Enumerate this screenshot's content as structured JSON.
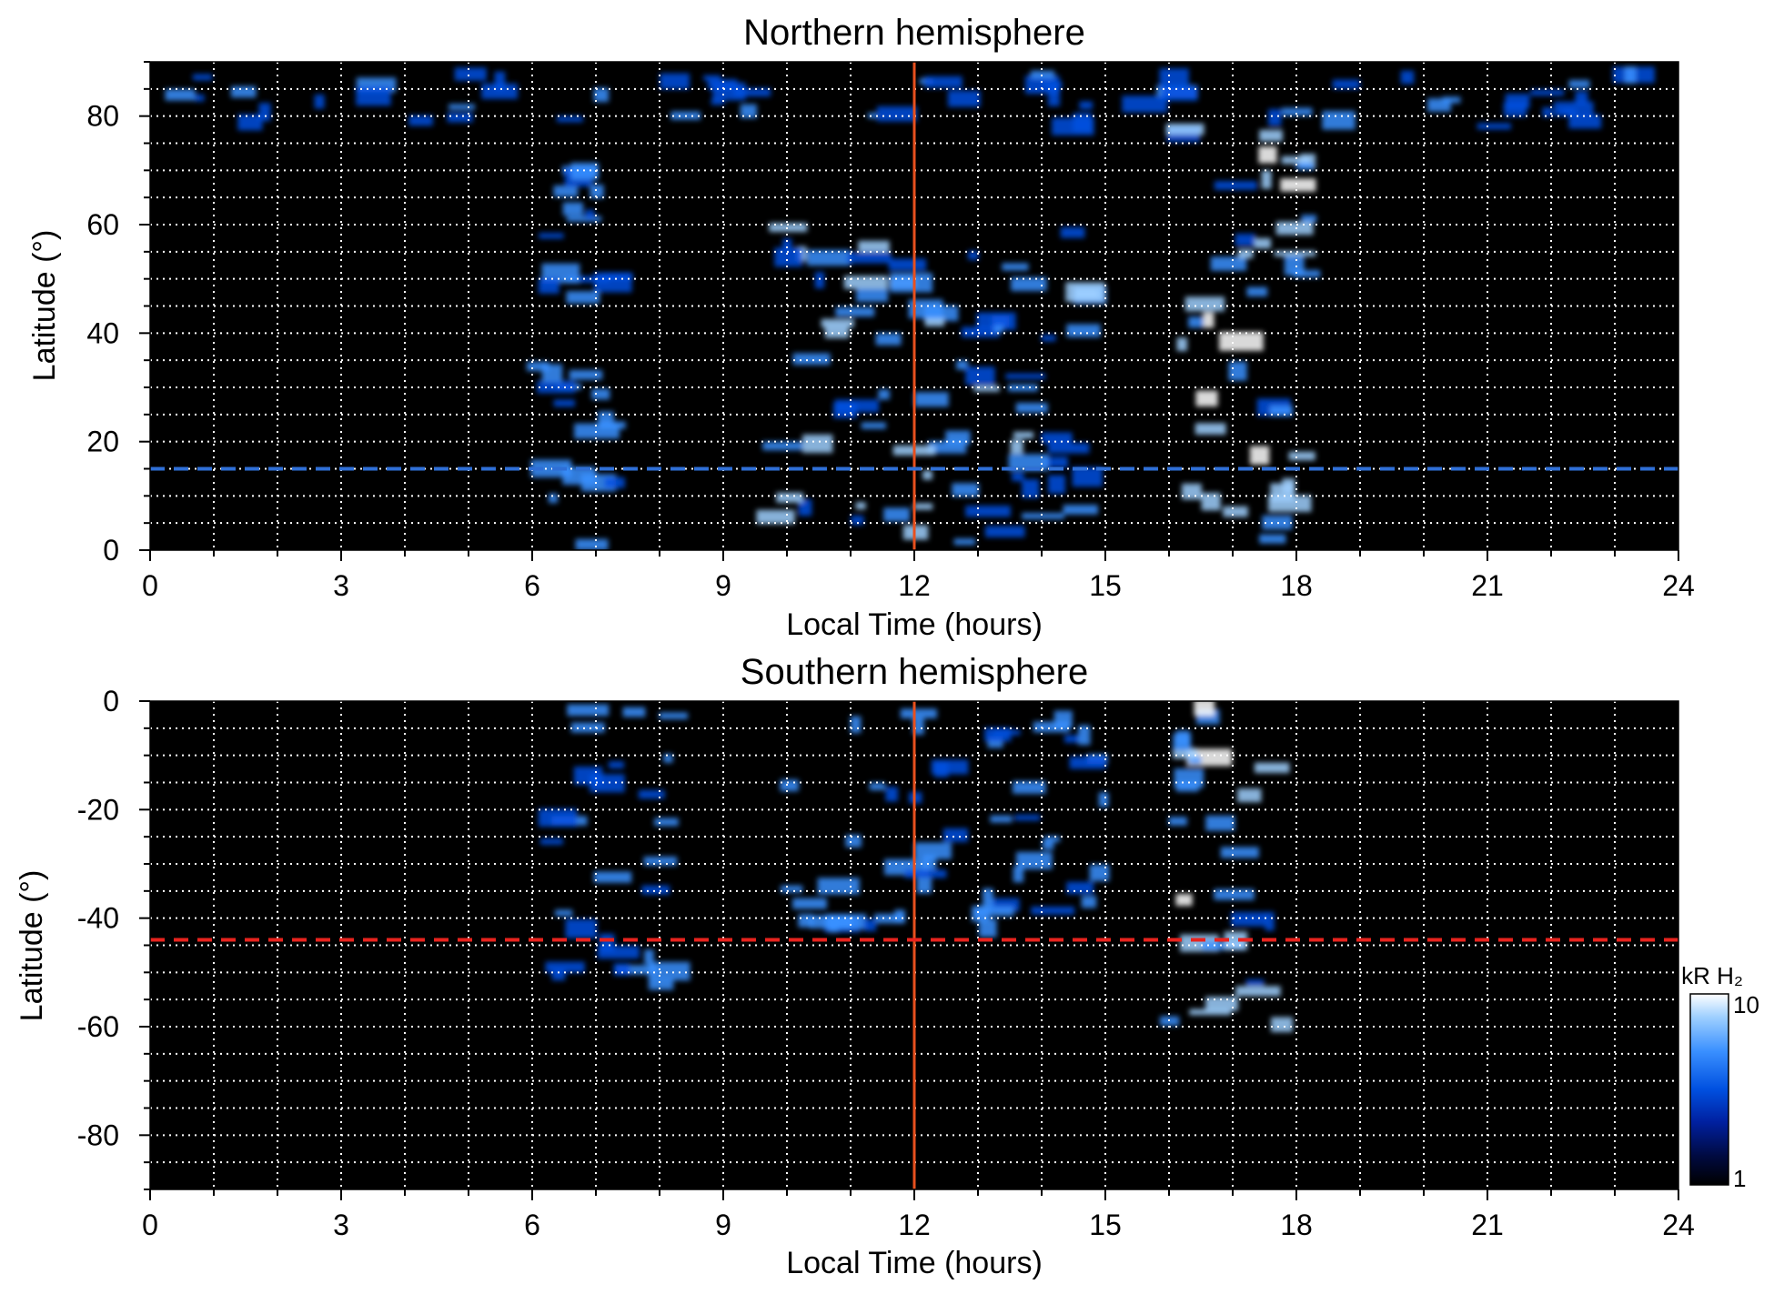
{
  "chart_data": [
    {
      "type": "heatmap",
      "title": "Northern hemisphere",
      "xlabel": "Local Time (hours)",
      "ylabel": "Latitude (°)",
      "xlim": [
        0,
        24
      ],
      "ylim": [
        0,
        90
      ],
      "x_ticks": [
        0,
        3,
        6,
        9,
        12,
        15,
        18,
        21,
        24
      ],
      "y_ticks": [
        0,
        20,
        40,
        60,
        80
      ],
      "x_minor_step": 1,
      "y_minor_step": 5,
      "grid": true,
      "background": "#000000",
      "reference_lines": [
        {
          "orientation": "vertical",
          "value": 12,
          "style": "solid",
          "color": "#e8501e"
        },
        {
          "orientation": "horizontal",
          "value": 15,
          "style": "dashed",
          "color": "#2f6fd6"
        }
      ],
      "emission_regions": [
        {
          "x": [
            5.9,
            7.6
          ],
          "y": [
            0,
            72
          ],
          "peak": 6
        },
        {
          "x": [
            9.8,
            14.8
          ],
          "y": [
            0,
            60
          ],
          "peak": 8
        },
        {
          "x": [
            16.2,
            18.2
          ],
          "y": [
            0,
            80
          ],
          "peak": 10
        },
        {
          "x": [
            0,
            24
          ],
          "y": [
            78,
            88
          ],
          "peak": 5
        }
      ]
    },
    {
      "type": "heatmap",
      "title": "Southern hemisphere",
      "xlabel": "Local Time (hours)",
      "ylabel": "Latitude (°)",
      "xlim": [
        0,
        24
      ],
      "ylim": [
        -90,
        0
      ],
      "x_ticks": [
        0,
        3,
        6,
        9,
        12,
        15,
        18,
        21,
        24
      ],
      "y_ticks": [
        -80,
        -60,
        -40,
        -20,
        0
      ],
      "x_minor_step": 1,
      "y_minor_step": 5,
      "grid": true,
      "background": "#000000",
      "reference_lines": [
        {
          "orientation": "vertical",
          "value": 12,
          "style": "solid",
          "color": "#e8501e"
        },
        {
          "orientation": "horizontal",
          "value": -44,
          "style": "dashed",
          "color": "#e8231e"
        }
      ],
      "emission_regions": [
        {
          "x": [
            6.3,
            8.3
          ],
          "y": [
            -54,
            0
          ],
          "peak": 6
        },
        {
          "x": [
            10.0,
            15.0
          ],
          "y": [
            -42,
            0
          ],
          "peak": 6
        },
        {
          "x": [
            16.0,
            17.8
          ],
          "y": [
            -60,
            0
          ],
          "peak": 10
        }
      ]
    }
  ],
  "colorbar": {
    "label": "kR H₂",
    "min_label": "1",
    "max_label": "10",
    "scale": "log",
    "colors": [
      "#000000",
      "#000a40",
      "#0020a0",
      "#0050e0",
      "#3a90ff",
      "#9fd0ff",
      "#ffffff"
    ]
  }
}
